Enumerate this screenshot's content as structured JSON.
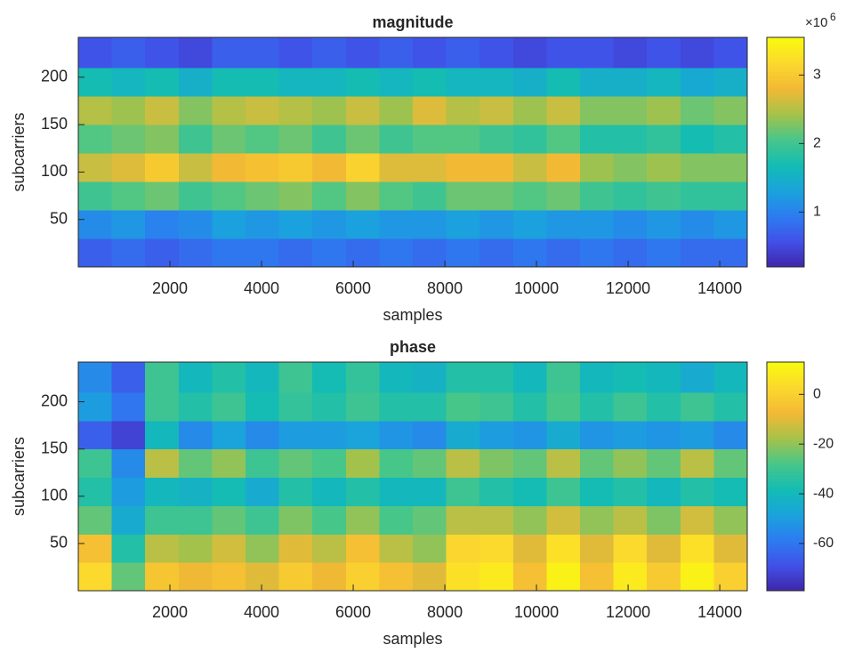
{
  "chart_data": [
    {
      "type": "heatmap",
      "title": "magnitude",
      "xlabel": "samples",
      "ylabel": "subcarriers",
      "xbins": [
        0,
        730,
        1460,
        2190,
        2920,
        3650,
        4380,
        5110,
        5840,
        6570,
        7300,
        8030,
        8760,
        9490,
        10220,
        10950,
        11680,
        12410,
        13140,
        13870,
        14600
      ],
      "ybins": [
        0,
        30,
        60,
        90,
        120,
        150,
        180,
        210,
        242
      ],
      "xlim": [
        0,
        14600
      ],
      "ylim": [
        0,
        242
      ],
      "xticks": [
        2000,
        4000,
        6000,
        8000,
        10000,
        12000,
        14000
      ],
      "yticks": [
        50,
        100,
        150,
        200
      ],
      "clim": [
        0.2,
        3.55
      ],
      "cticks": [
        1,
        2,
        3
      ],
      "colorbar_label": {
        "base": "×10",
        "exponent": "6"
      },
      "values": [
        [
          0.7,
          0.8,
          0.7,
          0.8,
          0.9,
          0.9,
          0.8,
          0.9,
          0.8,
          0.9,
          0.8,
          0.9,
          0.8,
          0.9,
          0.8,
          0.9,
          0.8,
          0.9,
          0.8,
          0.8
        ],
        [
          1.1,
          1.2,
          1.0,
          1.1,
          1.3,
          1.2,
          1.3,
          1.2,
          1.3,
          1.2,
          1.2,
          1.3,
          1.2,
          1.3,
          1.2,
          1.2,
          1.1,
          1.2,
          1.1,
          1.2
        ],
        [
          2.0,
          2.1,
          2.2,
          2.0,
          2.1,
          2.2,
          2.3,
          2.1,
          2.3,
          2.1,
          2.0,
          2.2,
          2.2,
          2.1,
          2.2,
          2.0,
          1.9,
          2.0,
          1.9,
          1.9
        ],
        [
          2.6,
          2.7,
          3.0,
          2.6,
          2.8,
          2.9,
          3.0,
          2.8,
          3.1,
          2.7,
          2.7,
          2.8,
          2.8,
          2.6,
          2.8,
          2.4,
          2.3,
          2.4,
          2.3,
          2.3
        ],
        [
          2.1,
          2.2,
          2.3,
          2.0,
          2.2,
          2.1,
          2.2,
          2.0,
          2.2,
          2.0,
          2.1,
          2.1,
          2.0,
          1.9,
          2.1,
          1.8,
          1.8,
          1.9,
          1.7,
          1.8
        ],
        [
          2.5,
          2.4,
          2.6,
          2.3,
          2.5,
          2.6,
          2.5,
          2.4,
          2.6,
          2.4,
          2.7,
          2.5,
          2.6,
          2.4,
          2.6,
          2.3,
          2.3,
          2.4,
          2.2,
          2.3
        ],
        [
          1.7,
          1.6,
          1.7,
          1.5,
          1.7,
          1.7,
          1.6,
          1.6,
          1.7,
          1.6,
          1.7,
          1.6,
          1.6,
          1.5,
          1.7,
          1.5,
          1.5,
          1.6,
          1.4,
          1.5
        ],
        [
          0.6,
          0.7,
          0.6,
          0.5,
          0.7,
          0.7,
          0.6,
          0.7,
          0.6,
          0.7,
          0.6,
          0.7,
          0.6,
          0.5,
          0.6,
          0.6,
          0.5,
          0.6,
          0.5,
          0.6
        ]
      ],
      "colormap": [
        "#3e26a8",
        "#4250e8",
        "#2c7cf0",
        "#1aa3dc",
        "#13bcb3",
        "#48c68a",
        "#a6c24a",
        "#f3b935",
        "#fbd82e",
        "#f9fb0e"
      ]
    },
    {
      "type": "heatmap",
      "title": "phase",
      "xlabel": "samples",
      "ylabel": "subcarriers",
      "xbins": [
        0,
        730,
        1460,
        2190,
        2920,
        3650,
        4380,
        5110,
        5840,
        6570,
        7300,
        8030,
        8760,
        9490,
        10220,
        10950,
        11680,
        12410,
        13140,
        13870,
        14600
      ],
      "ybins": [
        0,
        30,
        60,
        90,
        120,
        150,
        180,
        210,
        242
      ],
      "xlim": [
        0,
        14600
      ],
      "ylim": [
        0,
        242
      ],
      "xticks": [
        2000,
        4000,
        6000,
        8000,
        10000,
        12000,
        14000
      ],
      "yticks": [
        50,
        100,
        150,
        200
      ],
      "clim": [
        -79,
        13
      ],
      "cticks": [
        -60,
        -40,
        -20,
        0
      ],
      "values": [
        [
          3,
          -25,
          -3,
          -8,
          -5,
          -10,
          -2,
          -8,
          0,
          -5,
          -10,
          5,
          8,
          -5,
          10,
          -5,
          8,
          -2,
          10,
          0
        ],
        [
          -5,
          -35,
          -15,
          -18,
          -12,
          -20,
          -10,
          -15,
          -5,
          -15,
          -20,
          2,
          3,
          -10,
          5,
          -10,
          3,
          -10,
          5,
          -10
        ],
        [
          -25,
          -45,
          -30,
          -30,
          -25,
          -30,
          -22,
          -28,
          -20,
          -28,
          -25,
          -15,
          -15,
          -20,
          -12,
          -20,
          -15,
          -22,
          -12,
          -20
        ],
        [
          -35,
          -50,
          -40,
          -42,
          -38,
          -45,
          -35,
          -40,
          -35,
          -40,
          -40,
          -30,
          -35,
          -38,
          -30,
          -38,
          -35,
          -40,
          -35,
          -38
        ],
        [
          -30,
          -55,
          -15,
          -25,
          -20,
          -30,
          -25,
          -28,
          -18,
          -28,
          -25,
          -15,
          -22,
          -25,
          -15,
          -25,
          -20,
          -25,
          -15,
          -25
        ],
        [
          -65,
          -72,
          -40,
          -55,
          -48,
          -55,
          -50,
          -50,
          -48,
          -52,
          -55,
          -45,
          -50,
          -52,
          -45,
          -52,
          -50,
          -52,
          -50,
          -55
        ],
        [
          -50,
          -60,
          -30,
          -35,
          -30,
          -38,
          -32,
          -35,
          -30,
          -35,
          -35,
          -28,
          -30,
          -35,
          -28,
          -35,
          -30,
          -35,
          -30,
          -35
        ],
        [
          -55,
          -65,
          -30,
          -40,
          -35,
          -40,
          -30,
          -38,
          -32,
          -40,
          -42,
          -35,
          -35,
          -40,
          -30,
          -40,
          -38,
          -40,
          -45,
          -40
        ]
      ],
      "colormap": [
        "#3e26a8",
        "#4250e8",
        "#2c7cf0",
        "#1aa3dc",
        "#13bcb3",
        "#48c68a",
        "#a6c24a",
        "#f3b935",
        "#fbd82e",
        "#f9fb0e"
      ]
    }
  ]
}
